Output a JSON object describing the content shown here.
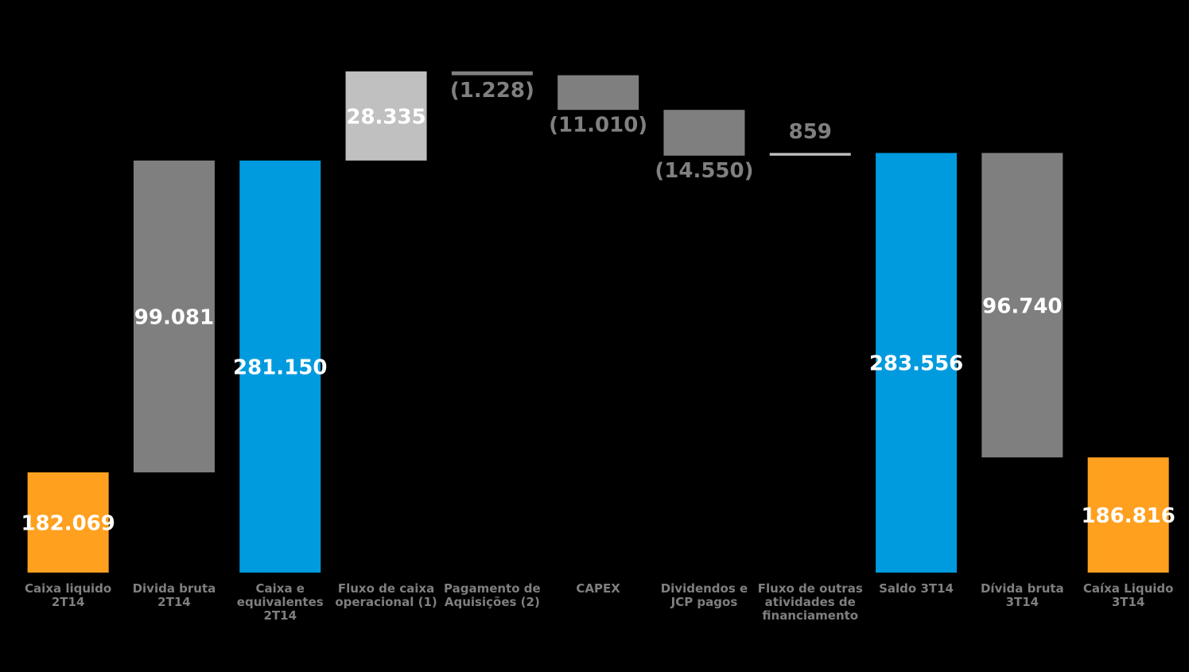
{
  "chart_data": {
    "type": "waterfall",
    "categories": [
      "Caixa liquido\n2T14",
      "Divida bruta\n2T14",
      "Caixa e\nequivalentes\n2T14",
      "Fluxo de caixa\noperacional (1)",
      "Pagamento de\nAquisições (2)",
      "CAPEX",
      "Dividendos e\nJCP pagos",
      "Fluxo de outras\natividades de\nfinanciamento",
      "Saldo 3T14",
      "Dívida bruta\n3T14",
      "Caíxa Liquido\n3T14"
    ],
    "values": [
      182069,
      99081,
      281150,
      28335,
      -1228,
      -11010,
      -14550,
      859,
      283556,
      96740,
      186816
    ],
    "value_labels": [
      "182.069",
      "99.081",
      "281.150",
      "28.335",
      "(1.228)",
      "(11.010)",
      "(14.550)",
      "859",
      "283.556",
      "96.740",
      "186.816"
    ],
    "measures": [
      "total",
      "increase",
      "total",
      "increase",
      "decrease",
      "decrease",
      "decrease",
      "increase",
      "total",
      "decrease",
      "total"
    ],
    "colors": [
      "#ffa01f",
      "#7f7f7f",
      "#009ade",
      "#c0c0c0",
      "#7f7f7f",
      "#7f7f7f",
      "#7f7f7f",
      "#c0c0c0",
      "#009ade",
      "#7f7f7f",
      "#ffa01f"
    ],
    "ylim": [
      150218,
      317000
    ]
  }
}
